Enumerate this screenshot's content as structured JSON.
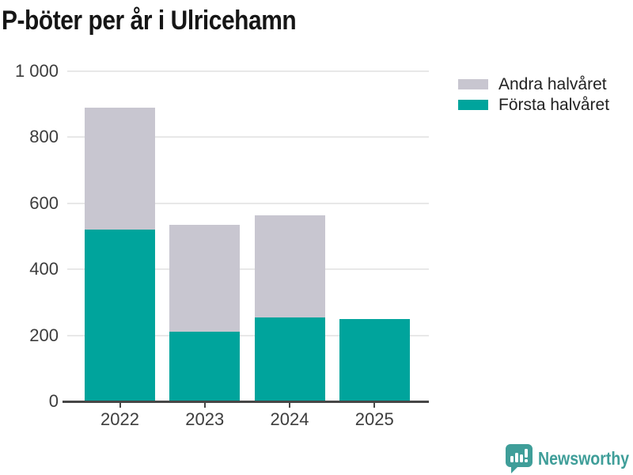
{
  "title": "P-böter per år i Ulricehamn",
  "colors": {
    "first_half": "#00a49c",
    "second_half": "#c8c6d0",
    "gridline": "#e8e8e8",
    "axis": "#474747",
    "label_text": "#3d3d3d",
    "title_text": "#161616",
    "brand": "#3f9e99"
  },
  "legend": {
    "items": [
      {
        "label": "Andra halvåret",
        "color": "#c8c6d0"
      },
      {
        "label": "Första halvåret",
        "color": "#00a49c"
      }
    ]
  },
  "chart_data": {
    "type": "bar",
    "stacked": true,
    "title": "P-böter per år i Ulricehamn",
    "categories": [
      "2022",
      "2023",
      "2024",
      "2025"
    ],
    "series": [
      {
        "name": "Första halvåret",
        "color": "#00a49c",
        "values": [
          520,
          210,
          253,
          250
        ]
      },
      {
        "name": "Andra halvåret",
        "color": "#c8c6d0",
        "values": [
          370,
          325,
          310,
          0
        ]
      }
    ],
    "totals": [
      890,
      535,
      563,
      250
    ],
    "xlabel": "",
    "ylabel": "",
    "ylim": [
      0,
      1000
    ],
    "yticks": [
      0,
      200,
      400,
      600,
      800,
      1000
    ],
    "ytick_labels": [
      "0",
      "200",
      "400",
      "600",
      "800",
      "1 000"
    ],
    "grid": "horizontal",
    "legend_position": "top-right"
  },
  "footer": {
    "brand_name": "Newsworthy"
  }
}
